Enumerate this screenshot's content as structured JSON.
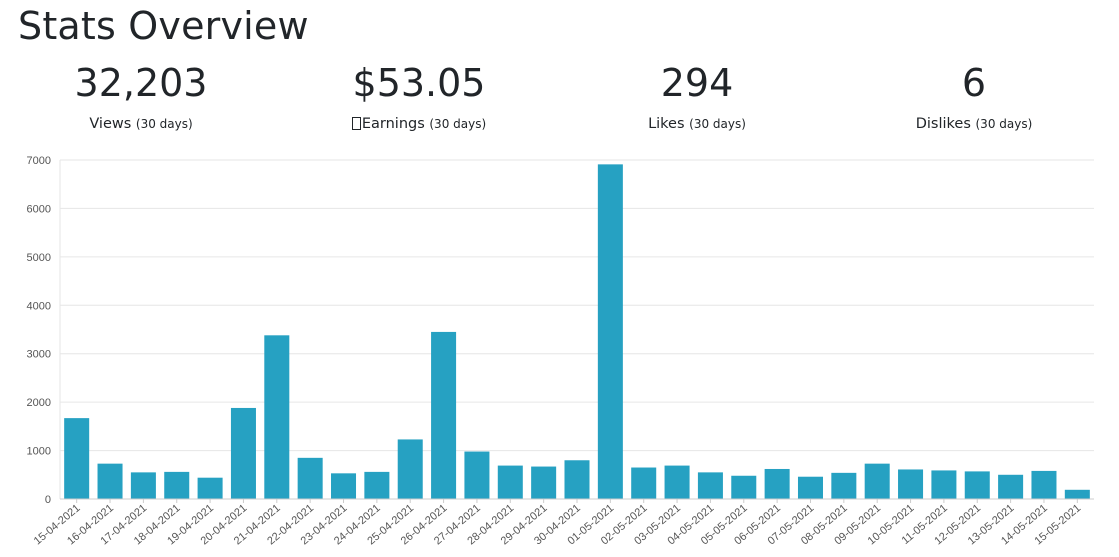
{
  "page": {
    "title": "Stats Overview"
  },
  "stats": [
    {
      "value": "32,203",
      "label": "Views",
      "period": "(30 days)",
      "icon": ""
    },
    {
      "value": "$53.05",
      "label": "Earnings",
      "period": "(30 days)",
      "icon": "missing-glyph-box"
    },
    {
      "value": "294",
      "label": "Likes",
      "period": "(30 days)",
      "icon": ""
    },
    {
      "value": "6",
      "label": "Dislikes",
      "period": "(30 days)",
      "icon": ""
    }
  ],
  "colors": {
    "bar": "#26a1c2",
    "grid": "#e6e6e6",
    "axis": "#cccccc"
  },
  "chart_data": {
    "type": "bar",
    "categories": [
      "15-04-2021",
      "16-04-2021",
      "17-04-2021",
      "18-04-2021",
      "19-04-2021",
      "20-04-2021",
      "21-04-2021",
      "22-04-2021",
      "23-04-2021",
      "24-04-2021",
      "25-04-2021",
      "26-04-2021",
      "27-04-2021",
      "28-04-2021",
      "29-04-2021",
      "30-04-2021",
      "01-05-2021",
      "02-05-2021",
      "03-05-2021",
      "04-05-2021",
      "05-05-2021",
      "06-05-2021",
      "07-05-2021",
      "08-05-2021",
      "09-05-2021",
      "10-05-2021",
      "11-05-2021",
      "12-05-2021",
      "13-05-2021",
      "14-05-2021",
      "15-05-2021"
    ],
    "values": [
      1670,
      730,
      550,
      560,
      440,
      1880,
      3380,
      850,
      530,
      560,
      1230,
      3450,
      980,
      690,
      670,
      800,
      6910,
      650,
      690,
      550,
      480,
      620,
      460,
      540,
      730,
      610,
      590,
      570,
      500,
      580,
      190
    ],
    "ylim": [
      0,
      7000
    ],
    "yticks": [
      "0",
      "1000",
      "2000",
      "3000",
      "4000",
      "5000",
      "6000",
      "7000"
    ],
    "grid": true,
    "legend": "none"
  }
}
